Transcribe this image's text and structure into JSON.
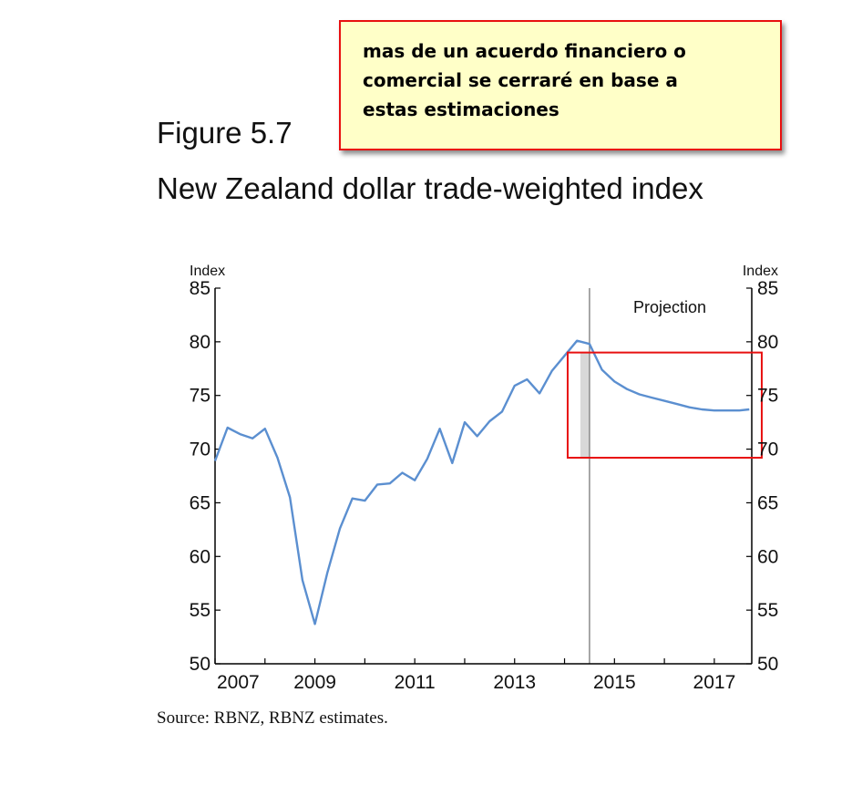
{
  "annotation": {
    "text_lines": [
      "mas de un acuerdo financiero o",
      "comercial se cerraré en base a",
      "estas estimaciones"
    ]
  },
  "figure": {
    "label": "Figure 5.7",
    "title": "New Zealand dollar trade-weighted index",
    "source": "Source: RBNZ, RBNZ estimates."
  },
  "colors": {
    "line": "#5b8fd0",
    "highlight_box": "#e81010",
    "annotation_fill": "#ffffc8"
  },
  "chart_data": {
    "type": "line",
    "title": "New Zealand dollar trade-weighted index",
    "ylabel_left": "Index",
    "ylabel_right": "Index",
    "ylim": [
      50,
      85
    ],
    "yticks": [
      50,
      55,
      60,
      65,
      70,
      75,
      80,
      85
    ],
    "xlim": [
      2007,
      2017.75
    ],
    "xtick_labels": [
      "2007",
      "2009",
      "2011",
      "2013",
      "2015",
      "2017"
    ],
    "xticks": [
      2007,
      2009,
      2011,
      2013,
      2015,
      2017
    ],
    "projection_start": 2014.5,
    "projection_label": "Projection",
    "grid": false,
    "series": [
      {
        "x": [
          2007.0,
          2007.25,
          2007.5,
          2007.75,
          2008.0,
          2008.25,
          2008.5,
          2008.75,
          2009.0,
          2009.25,
          2009.5,
          2009.75,
          2010.0,
          2010.25,
          2010.5,
          2010.75,
          2011.0,
          2011.25,
          2011.5,
          2011.75,
          2012.0,
          2012.25,
          2012.5,
          2012.75,
          2013.0,
          2013.25,
          2013.5,
          2013.75,
          2014.0,
          2014.25,
          2014.5,
          2014.75,
          2015.0,
          2015.25,
          2015.5,
          2015.75,
          2016.0,
          2016.25,
          2016.5,
          2016.75,
          2017.0,
          2017.25,
          2017.5,
          2017.7
        ],
        "values": [
          68.9,
          72.0,
          71.4,
          71.0,
          71.9,
          69.2,
          65.5,
          57.8,
          53.7,
          58.5,
          62.6,
          65.4,
          65.2,
          66.7,
          66.8,
          67.8,
          67.1,
          69.1,
          71.9,
          68.7,
          72.5,
          71.2,
          72.6,
          73.5,
          75.9,
          76.5,
          75.2,
          77.3,
          78.7,
          80.1,
          79.8,
          77.4,
          76.3,
          75.6,
          75.1,
          74.8,
          74.5,
          74.2,
          73.9,
          73.7,
          73.6,
          73.6,
          73.6,
          73.7
        ]
      }
    ],
    "highlight_box": {
      "x_range": [
        2014.3,
        2017.95
      ],
      "y_range": [
        69.2,
        79.0
      ]
    }
  }
}
